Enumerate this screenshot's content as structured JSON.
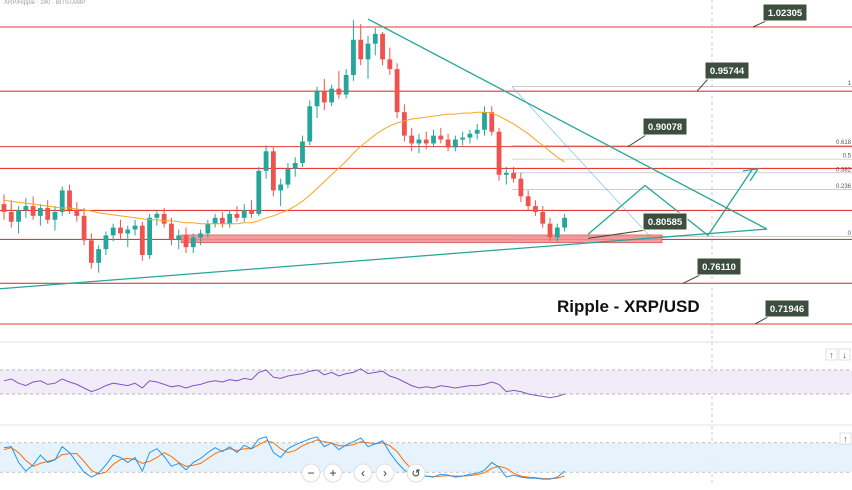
{
  "header_text": "XRP/Ripple · 240 · BITSTAMP",
  "chart_data": {
    "type": "candlestick",
    "title": "Ripple - XRP/USD",
    "price_levels": [
      1.02305,
      0.95744,
      0.90078,
      0.80585,
      0.7611,
      0.71946
    ],
    "price_level_labels": [
      "1.02305",
      "0.95744",
      "0.90078",
      "0.80585",
      "0.76110",
      "0.71946"
    ],
    "fib_labels": [
      "1",
      "0.618",
      "0.5",
      "0.382",
      "0.236",
      "0"
    ],
    "ohlc": [
      {
        "o": 0.842,
        "h": 0.852,
        "l": 0.826,
        "c": 0.834
      },
      {
        "o": 0.834,
        "h": 0.846,
        "l": 0.818,
        "c": 0.824
      },
      {
        "o": 0.824,
        "h": 0.84,
        "l": 0.812,
        "c": 0.836
      },
      {
        "o": 0.836,
        "h": 0.848,
        "l": 0.828,
        "c": 0.84
      },
      {
        "o": 0.84,
        "h": 0.85,
        "l": 0.826,
        "c": 0.83
      },
      {
        "o": 0.83,
        "h": 0.842,
        "l": 0.82,
        "c": 0.838
      },
      {
        "o": 0.838,
        "h": 0.846,
        "l": 0.822,
        "c": 0.826
      },
      {
        "o": 0.826,
        "h": 0.84,
        "l": 0.815,
        "c": 0.834
      },
      {
        "o": 0.834,
        "h": 0.86,
        "l": 0.83,
        "c": 0.856
      },
      {
        "o": 0.856,
        "h": 0.862,
        "l": 0.832,
        "c": 0.836
      },
      {
        "o": 0.836,
        "h": 0.844,
        "l": 0.824,
        "c": 0.83
      },
      {
        "o": 0.83,
        "h": 0.838,
        "l": 0.8,
        "c": 0.805
      },
      {
        "o": 0.805,
        "h": 0.812,
        "l": 0.776,
        "c": 0.782
      },
      {
        "o": 0.782,
        "h": 0.8,
        "l": 0.772,
        "c": 0.796
      },
      {
        "o": 0.796,
        "h": 0.814,
        "l": 0.79,
        "c": 0.81
      },
      {
        "o": 0.81,
        "h": 0.822,
        "l": 0.804,
        "c": 0.818
      },
      {
        "o": 0.818,
        "h": 0.826,
        "l": 0.806,
        "c": 0.812
      },
      {
        "o": 0.812,
        "h": 0.82,
        "l": 0.798,
        "c": 0.816
      },
      {
        "o": 0.816,
        "h": 0.826,
        "l": 0.81,
        "c": 0.82
      },
      {
        "o": 0.82,
        "h": 0.824,
        "l": 0.784,
        "c": 0.79
      },
      {
        "o": 0.79,
        "h": 0.832,
        "l": 0.786,
        "c": 0.828
      },
      {
        "o": 0.828,
        "h": 0.836,
        "l": 0.82,
        "c": 0.832
      },
      {
        "o": 0.832,
        "h": 0.838,
        "l": 0.818,
        "c": 0.822
      },
      {
        "o": 0.822,
        "h": 0.828,
        "l": 0.8,
        "c": 0.806
      },
      {
        "o": 0.806,
        "h": 0.816,
        "l": 0.796,
        "c": 0.81
      },
      {
        "o": 0.81,
        "h": 0.818,
        "l": 0.792,
        "c": 0.798
      },
      {
        "o": 0.798,
        "h": 0.812,
        "l": 0.792,
        "c": 0.808
      },
      {
        "o": 0.808,
        "h": 0.816,
        "l": 0.8,
        "c": 0.812
      },
      {
        "o": 0.812,
        "h": 0.826,
        "l": 0.808,
        "c": 0.822
      },
      {
        "o": 0.822,
        "h": 0.832,
        "l": 0.818,
        "c": 0.828
      },
      {
        "o": 0.828,
        "h": 0.834,
        "l": 0.818,
        "c": 0.822
      },
      {
        "o": 0.822,
        "h": 0.836,
        "l": 0.818,
        "c": 0.832
      },
      {
        "o": 0.832,
        "h": 0.84,
        "l": 0.824,
        "c": 0.828
      },
      {
        "o": 0.828,
        "h": 0.842,
        "l": 0.824,
        "c": 0.836
      },
      {
        "o": 0.836,
        "h": 0.846,
        "l": 0.828,
        "c": 0.832
      },
      {
        "o": 0.832,
        "h": 0.88,
        "l": 0.83,
        "c": 0.876
      },
      {
        "o": 0.876,
        "h": 0.902,
        "l": 0.868,
        "c": 0.896
      },
      {
        "o": 0.896,
        "h": 0.9,
        "l": 0.85,
        "c": 0.856
      },
      {
        "o": 0.856,
        "h": 0.868,
        "l": 0.84,
        "c": 0.862
      },
      {
        "o": 0.862,
        "h": 0.884,
        "l": 0.858,
        "c": 0.878
      },
      {
        "o": 0.878,
        "h": 0.89,
        "l": 0.87,
        "c": 0.884
      },
      {
        "o": 0.884,
        "h": 0.912,
        "l": 0.88,
        "c": 0.906
      },
      {
        "o": 0.906,
        "h": 0.948,
        "l": 0.902,
        "c": 0.942
      },
      {
        "o": 0.942,
        "h": 0.962,
        "l": 0.93,
        "c": 0.958
      },
      {
        "o": 0.958,
        "h": 0.97,
        "l": 0.938,
        "c": 0.946
      },
      {
        "o": 0.946,
        "h": 0.964,
        "l": 0.942,
        "c": 0.96
      },
      {
        "o": 0.96,
        "h": 0.978,
        "l": 0.95,
        "c": 0.954
      },
      {
        "o": 0.954,
        "h": 0.98,
        "l": 0.95,
        "c": 0.974
      },
      {
        "o": 0.974,
        "h": 1.03,
        "l": 0.968,
        "c": 1.01
      },
      {
        "o": 1.01,
        "h": 1.026,
        "l": 0.984,
        "c": 0.99
      },
      {
        "o": 0.99,
        "h": 1.014,
        "l": 0.97,
        "c": 1.006
      },
      {
        "o": 1.006,
        "h": 1.022,
        "l": 0.994,
        "c": 1.016
      },
      {
        "o": 1.016,
        "h": 1.018,
        "l": 0.984,
        "c": 0.99
      },
      {
        "o": 0.99,
        "h": 1.002,
        "l": 0.974,
        "c": 0.98
      },
      {
        "o": 0.98,
        "h": 0.986,
        "l": 0.93,
        "c": 0.936
      },
      {
        "o": 0.936,
        "h": 0.944,
        "l": 0.906,
        "c": 0.912
      },
      {
        "o": 0.912,
        "h": 0.92,
        "l": 0.896,
        "c": 0.904
      },
      {
        "o": 0.904,
        "h": 0.914,
        "l": 0.894,
        "c": 0.908
      },
      {
        "o": 0.908,
        "h": 0.916,
        "l": 0.898,
        "c": 0.904
      },
      {
        "o": 0.904,
        "h": 0.918,
        "l": 0.9,
        "c": 0.912
      },
      {
        "o": 0.912,
        "h": 0.92,
        "l": 0.904,
        "c": 0.908
      },
      {
        "o": 0.908,
        "h": 0.914,
        "l": 0.896,
        "c": 0.9
      },
      {
        "o": 0.9,
        "h": 0.912,
        "l": 0.896,
        "c": 0.908
      },
      {
        "o": 0.908,
        "h": 0.916,
        "l": 0.902,
        "c": 0.91
      },
      {
        "o": 0.91,
        "h": 0.918,
        "l": 0.904,
        "c": 0.914
      },
      {
        "o": 0.914,
        "h": 0.924,
        "l": 0.908,
        "c": 0.918
      },
      {
        "o": 0.918,
        "h": 0.942,
        "l": 0.912,
        "c": 0.936
      },
      {
        "o": 0.936,
        "h": 0.942,
        "l": 0.912,
        "c": 0.916
      },
      {
        "o": 0.916,
        "h": 0.92,
        "l": 0.866,
        "c": 0.872
      },
      {
        "o": 0.872,
        "h": 0.88,
        "l": 0.862,
        "c": 0.874
      },
      {
        "o": 0.874,
        "h": 0.88,
        "l": 0.864,
        "c": 0.868
      },
      {
        "o": 0.868,
        "h": 0.874,
        "l": 0.844,
        "c": 0.85
      },
      {
        "o": 0.85,
        "h": 0.856,
        "l": 0.836,
        "c": 0.84
      },
      {
        "o": 0.84,
        "h": 0.846,
        "l": 0.83,
        "c": 0.834
      },
      {
        "o": 0.834,
        "h": 0.84,
        "l": 0.818,
        "c": 0.822
      },
      {
        "o": 0.822,
        "h": 0.828,
        "l": 0.804,
        "c": 0.808
      },
      {
        "o": 0.808,
        "h": 0.822,
        "l": 0.804,
        "c": 0.818
      },
      {
        "o": 0.818,
        "h": 0.832,
        "l": 0.814,
        "c": 0.828
      }
    ],
    "ma_values": [
      0.846,
      0.845,
      0.844,
      0.843,
      0.842,
      0.841,
      0.84,
      0.839,
      0.838,
      0.838,
      0.837,
      0.836,
      0.835,
      0.833,
      0.832,
      0.831,
      0.83,
      0.829,
      0.828,
      0.827,
      0.826,
      0.826,
      0.825,
      0.825,
      0.824,
      0.823,
      0.823,
      0.822,
      0.822,
      0.822,
      0.822,
      0.822,
      0.822,
      0.823,
      0.823,
      0.825,
      0.828,
      0.83,
      0.833,
      0.836,
      0.84,
      0.845,
      0.851,
      0.858,
      0.865,
      0.872,
      0.879,
      0.886,
      0.894,
      0.901,
      0.907,
      0.913,
      0.918,
      0.922,
      0.925,
      0.927,
      0.929,
      0.93,
      0.931,
      0.932,
      0.933,
      0.934,
      0.934,
      0.935,
      0.935,
      0.936,
      0.936,
      0.935,
      0.932,
      0.928,
      0.924,
      0.919,
      0.914,
      0.908,
      0.902,
      0.896,
      0.89,
      0.885
    ],
    "rsi_values": [
      52,
      55,
      48,
      44,
      50,
      52,
      46,
      48,
      55,
      50,
      46,
      40,
      34,
      38,
      44,
      48,
      46,
      44,
      48,
      40,
      52,
      50,
      46,
      42,
      44,
      40,
      44,
      46,
      50,
      52,
      50,
      54,
      52,
      56,
      54,
      66,
      70,
      58,
      56,
      60,
      62,
      64,
      68,
      70,
      62,
      66,
      60,
      64,
      66,
      72,
      64,
      66,
      68,
      60,
      56,
      50,
      44,
      40,
      42,
      40,
      44,
      42,
      40,
      42,
      44,
      44,
      46,
      50,
      46,
      34,
      36,
      34,
      30,
      28,
      26,
      24,
      26,
      30
    ],
    "stoch_k": [
      70,
      72,
      40,
      22,
      35,
      55,
      40,
      45,
      72,
      60,
      40,
      20,
      10,
      18,
      35,
      55,
      50,
      40,
      50,
      22,
      60,
      68,
      52,
      32,
      38,
      25,
      40,
      48,
      60,
      70,
      62,
      72,
      60,
      75,
      68,
      88,
      92,
      60,
      50,
      68,
      76,
      82,
      88,
      92,
      72,
      80,
      66,
      76,
      82,
      90,
      72,
      78,
      84,
      60,
      40,
      24,
      14,
      10,
      12,
      10,
      16,
      14,
      10,
      12,
      16,
      18,
      24,
      40,
      30,
      10,
      14,
      10,
      8,
      8,
      6,
      6,
      10,
      22
    ],
    "stoch_d": [
      66,
      70,
      60,
      44,
      32,
      38,
      42,
      46,
      56,
      58,
      58,
      42,
      24,
      16,
      20,
      36,
      46,
      48,
      46,
      38,
      42,
      50,
      60,
      52,
      40,
      32,
      34,
      38,
      48,
      58,
      64,
      68,
      64,
      68,
      68,
      76,
      84,
      80,
      68,
      60,
      64,
      74,
      80,
      86,
      82,
      80,
      74,
      74,
      76,
      82,
      80,
      78,
      80,
      74,
      62,
      42,
      26,
      16,
      12,
      11,
      12,
      13,
      12,
      12,
      13,
      15,
      19,
      28,
      32,
      28,
      18,
      12,
      10,
      9,
      7,
      7,
      8,
      12
    ],
    "rsi_levels": [
      70,
      30
    ],
    "stoch_levels": [
      80,
      20
    ],
    "projection_path": [
      0.811,
      0.861,
      0.81,
      0.877
    ],
    "colors": {
      "up": "#26a69a",
      "down": "#ef5350",
      "level": "#e53935",
      "trend": "#26a69a",
      "ma": "#f5a623",
      "rsi": "#7e57c2",
      "stoch_k": "#2196f3",
      "stoch_d": "#ff6d00",
      "label_bg": "#3c4e3d",
      "zone": "#f28c8c",
      "fib": "#42a5f5"
    }
  },
  "toolbar": {
    "zoom_out": "−",
    "zoom_in": "+",
    "scroll_left": "‹",
    "scroll_right": "›",
    "reset_icon": "↺",
    "arrow_up": "↑",
    "arrow_down": "↓"
  }
}
